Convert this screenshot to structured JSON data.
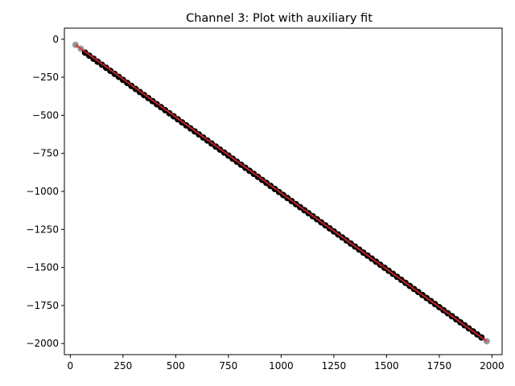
{
  "chart_data": {
    "type": "scatter",
    "title": "Channel 3: Plot with auxiliary fit",
    "xlabel": "",
    "ylabel": "",
    "xlim": [
      -28,
      2048
    ],
    "ylim": [
      -2073,
      73
    ],
    "xticks": [
      0,
      250,
      500,
      750,
      1000,
      1250,
      1500,
      1750,
      2000
    ],
    "yticks": [
      0,
      -250,
      -500,
      -750,
      -1000,
      -1250,
      -1500,
      -1750,
      -2000
    ],
    "xtick_labels": [
      "0",
      "250",
      "500",
      "750",
      "1000",
      "1250",
      "1500",
      "1750",
      "2000"
    ],
    "ytick_labels": [
      "0",
      "−250",
      "−500",
      "−750",
      "−1000",
      "−1250",
      "−1500",
      "−1750",
      "−2000"
    ],
    "grid": false,
    "series": [
      {
        "kind": "points",
        "color": "#000000",
        "x_start": 70,
        "x_end": 1950,
        "x_step": 20,
        "y_start": -88,
        "y_end": -1960,
        "point_count": 95
      },
      {
        "kind": "excluded-points",
        "color": "#808080",
        "x": [
          25,
          50,
          1975
        ],
        "y": [
          -37,
          -62,
          -1985
        ]
      },
      {
        "kind": "fit-line",
        "color": "#d62728",
        "x": [
          25,
          1975
        ],
        "y": [
          -37,
          -1985
        ]
      }
    ]
  }
}
